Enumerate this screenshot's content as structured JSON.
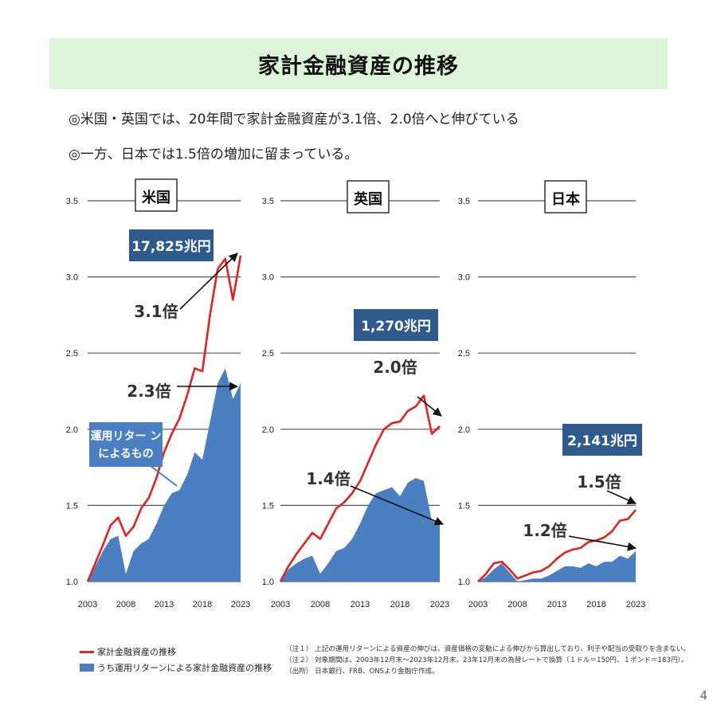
{
  "title": "家計金融資産の推移",
  "bullets": [
    "◎米国・英国では、20年間で家計金融資産が3.1倍、2.0倍へと伸びている",
    "◎一方、日本では1.5倍の増加に留まっている。"
  ],
  "colors": {
    "total": "#e8201c",
    "returns": "#4a7fc1",
    "label_box": "#2e5a8c",
    "grid": "#555555"
  },
  "chart_data": [
    {
      "type": "area",
      "title": "米国",
      "x": [
        2003,
        2004,
        2005,
        2006,
        2007,
        2008,
        2009,
        2010,
        2011,
        2012,
        2013,
        2014,
        2015,
        2016,
        2017,
        2018,
        2019,
        2020,
        2021,
        2022,
        2023
      ],
      "xticks": [
        "2003",
        "2008",
        "2013",
        "2018",
        "2023"
      ],
      "yticks": [
        "1.0",
        "1.5",
        "2.0",
        "2.5",
        "3.0",
        "3.5"
      ],
      "ylim": [
        1.0,
        3.5
      ],
      "series": [
        {
          "name": "家計金融資産の推移",
          "values": [
            1.0,
            1.12,
            1.24,
            1.37,
            1.42,
            1.3,
            1.36,
            1.48,
            1.55,
            1.68,
            1.85,
            1.97,
            2.07,
            2.22,
            2.4,
            2.38,
            2.75,
            3.05,
            3.12,
            2.85,
            3.14
          ]
        },
        {
          "name": "うち運用リターンによる家計金融資産の推移",
          "values": [
            1.0,
            1.1,
            1.2,
            1.28,
            1.3,
            1.05,
            1.2,
            1.25,
            1.28,
            1.38,
            1.5,
            1.58,
            1.6,
            1.7,
            1.85,
            1.8,
            2.05,
            2.3,
            2.4,
            2.2,
            2.3
          ]
        }
      ],
      "total_label": "17,825兆円",
      "total_multiple": "3.1倍",
      "returns_multiple": "2.3倍",
      "returns_callout": [
        "運用リター ン",
        "によるもの"
      ]
    },
    {
      "type": "area",
      "title": "英国",
      "x": [
        2003,
        2004,
        2005,
        2006,
        2007,
        2008,
        2009,
        2010,
        2011,
        2012,
        2013,
        2014,
        2015,
        2016,
        2017,
        2018,
        2019,
        2020,
        2021,
        2022,
        2023
      ],
      "xticks": [
        "2003",
        "2008",
        "2013",
        "2018",
        "2023"
      ],
      "yticks": [
        "1.0",
        "1.5",
        "2.0",
        "2.5",
        "3.0",
        "3.5"
      ],
      "ylim": [
        1.0,
        3.5
      ],
      "series": [
        {
          "name": "家計金融資産の推移",
          "values": [
            1.0,
            1.1,
            1.18,
            1.25,
            1.32,
            1.28,
            1.38,
            1.48,
            1.52,
            1.58,
            1.66,
            1.78,
            1.9,
            2.0,
            2.04,
            2.05,
            2.12,
            2.15,
            2.22,
            1.97,
            2.02
          ]
        },
        {
          "name": "うち運用リターンによる家計金融資産の推移",
          "values": [
            1.0,
            1.08,
            1.12,
            1.15,
            1.17,
            1.05,
            1.12,
            1.2,
            1.22,
            1.28,
            1.38,
            1.5,
            1.58,
            1.6,
            1.62,
            1.56,
            1.65,
            1.68,
            1.66,
            1.4,
            1.38
          ]
        }
      ],
      "total_label": "1,270兆円",
      "total_multiple": "2.0倍",
      "returns_multiple": "1.4倍"
    },
    {
      "type": "area",
      "title": "日本",
      "x": [
        2003,
        2004,
        2005,
        2006,
        2007,
        2008,
        2009,
        2010,
        2011,
        2012,
        2013,
        2014,
        2015,
        2016,
        2017,
        2018,
        2019,
        2020,
        2021,
        2022,
        2023
      ],
      "xticks": [
        "2003",
        "2008",
        "2013",
        "2018",
        "2023"
      ],
      "yticks": [
        "1.0",
        "1.5",
        "2.0",
        "2.5",
        "3.0",
        "3.5"
      ],
      "ylim": [
        1.0,
        3.5
      ],
      "series": [
        {
          "name": "家計金融資産の推移",
          "values": [
            1.0,
            1.05,
            1.12,
            1.13,
            1.08,
            1.02,
            1.04,
            1.06,
            1.07,
            1.1,
            1.15,
            1.19,
            1.21,
            1.22,
            1.26,
            1.27,
            1.29,
            1.33,
            1.4,
            1.41,
            1.47
          ]
        },
        {
          "name": "うち運用リターンによる家計金融資産の推移",
          "values": [
            1.0,
            1.03,
            1.08,
            1.12,
            1.06,
            1.0,
            1.01,
            1.02,
            1.02,
            1.04,
            1.07,
            1.1,
            1.1,
            1.09,
            1.12,
            1.1,
            1.13,
            1.13,
            1.17,
            1.15,
            1.2
          ]
        }
      ],
      "total_label": "2,141兆円",
      "total_multiple": "1.5倍",
      "returns_multiple": "1.2倍"
    }
  ],
  "legend": {
    "total": "家計金融資産の推移",
    "returns": "うち運用リターンによる家計金融資産の推移"
  },
  "notes": [
    "（注１） 上記の運用リターンによる資産の伸びは、資産価格の変動による伸びから算出しており、利子や配当の受取りを含まない。",
    "（注２） 対象期間は、2003年12月末～2023年12月末。23年12月末の為替レートで換算（１ドル＝150円、１ポンド＝183円）。",
    "（出所） 日本銀行、FRB、ONSより金融庁作成。"
  ],
  "page_number": "4"
}
